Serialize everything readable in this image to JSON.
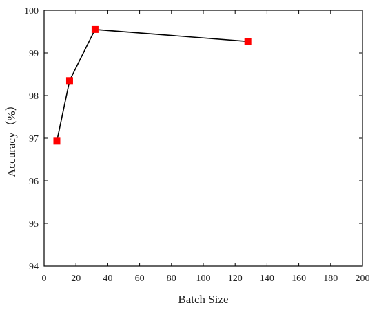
{
  "chart_data": {
    "type": "line",
    "xlabel": "Batch Size",
    "ylabel": "Accuracy（%）",
    "xlim": [
      0,
      200
    ],
    "ylim": [
      94,
      100
    ],
    "xticks": [
      0,
      20,
      40,
      60,
      80,
      100,
      120,
      140,
      160,
      180,
      200
    ],
    "yticks": [
      94,
      95,
      96,
      97,
      98,
      99,
      100
    ],
    "grid": false,
    "series": [
      {
        "x": [
          8,
          16,
          32,
          128
        ],
        "y": [
          96.93,
          98.35,
          99.55,
          99.27
        ],
        "line_color": "#000000",
        "marker": "square",
        "marker_color": "#ff0000"
      }
    ]
  }
}
